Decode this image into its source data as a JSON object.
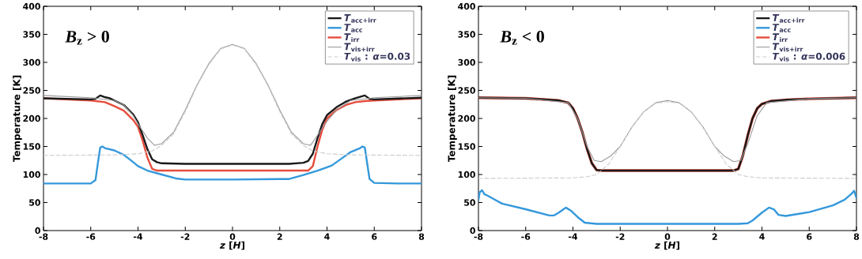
{
  "chart_data": [
    {
      "type": "line",
      "annotations": [
        "*B*$_{z}$ > 0"
      ],
      "xlabel": "*z* [*H*]",
      "ylabel": "Temperature [K]",
      "xlim": [
        -8,
        8
      ],
      "ylim": [
        0,
        400
      ],
      "xticks": [
        -8,
        -6,
        -4,
        -2,
        0,
        2,
        4,
        6,
        8
      ],
      "yticks": [
        0,
        50,
        100,
        150,
        200,
        250,
        300,
        350,
        400
      ],
      "grid": false,
      "legend": "top right",
      "series": [
        {
          "name": "*T*$_{acc+irr}$",
          "color": "#1a1a1a",
          "line_style": "solid",
          "x": [
            -8,
            -6,
            -5.8,
            -5.6,
            -5.4,
            -5.2,
            -5,
            -4.6,
            -4.2,
            -4,
            -3.8,
            -3.6,
            -3.4,
            -3.2,
            -3,
            -2,
            0,
            2.4,
            3,
            3.2,
            3.4,
            3.6,
            3.8,
            4,
            4.4,
            4.8,
            5.2,
            5.6,
            5.8,
            6,
            8
          ],
          "values": [
            236,
            234,
            235,
            241,
            238,
            236,
            232,
            224,
            207,
            193,
            170,
            145,
            127,
            122,
            120,
            119,
            119,
            119,
            121,
            124,
            137,
            165,
            190,
            206,
            220,
            230,
            236,
            241,
            235,
            234,
            237
          ]
        },
        {
          "name": "*T*$_{acc}$",
          "color": "#3498db",
          "line_style": "solid",
          "x": [
            -8,
            -7,
            -6,
            -5.8,
            -5.7,
            -5.6,
            -5.5,
            -5.4,
            -5,
            -4.6,
            -4.2,
            -4,
            -3.6,
            -3,
            -2.4,
            -2,
            0,
            2,
            2.4,
            3,
            3.6,
            4,
            4.2,
            4.6,
            5,
            5.4,
            5.5,
            5.6,
            5.7,
            5.8,
            6,
            7,
            8
          ],
          "values": [
            84,
            84,
            84,
            90,
            120,
            148,
            150,
            147,
            143,
            135,
            122,
            115,
            107,
            100,
            93,
            91,
            91,
            92,
            92,
            99,
            107,
            113,
            116,
            128,
            140,
            147,
            150,
            148,
            120,
            92,
            85,
            84,
            84
          ]
        },
        {
          "name": "*T*$_{irr}$",
          "color": "#e74c3c",
          "line_style": "solid",
          "x": [
            -8,
            -6,
            -5.4,
            -5,
            -4.6,
            -4.2,
            -4,
            -3.8,
            -3.6,
            -3.4,
            -3.2,
            0,
            3.2,
            3.4,
            3.6,
            3.8,
            4,
            4.4,
            4.8,
            5.2,
            5.6,
            6,
            8
          ],
          "values": [
            236,
            232,
            229,
            222,
            214,
            197,
            185,
            160,
            130,
            110,
            107,
            107,
            107,
            115,
            150,
            180,
            200,
            215,
            224,
            229,
            231,
            232,
            236
          ]
        },
        {
          "name": "*T*$_{vis+irr}$",
          "color": "#999999",
          "line_style": "solid",
          "x": [
            -8,
            -6,
            -5,
            -4.6,
            -4.2,
            -4,
            -3.6,
            -3.3,
            -3,
            -2.5,
            -2,
            -1.5,
            -1,
            -0.5,
            0,
            0.5,
            1,
            1.5,
            2,
            2.5,
            3,
            3.3,
            3.6,
            4,
            4.4,
            5,
            6,
            8
          ],
          "values": [
            241,
            237,
            232,
            224,
            205,
            190,
            165,
            152,
            155,
            175,
            215,
            260,
            298,
            325,
            332,
            325,
            298,
            260,
            215,
            175,
            155,
            152,
            170,
            195,
            215,
            232,
            237,
            241
          ]
        },
        {
          "name": "*T*$_{vis}$ : *α*=0.03",
          "color": "#cccccc",
          "line_style": "dashed",
          "x": [
            -8,
            -5,
            -4,
            -3.4,
            -3,
            -2.5,
            -2,
            -1.5,
            -1,
            -0.5,
            0,
            0.5,
            1,
            1.5,
            2,
            2.5,
            3,
            3.4,
            4,
            5,
            8
          ],
          "values": [
            134,
            135,
            137,
            142,
            152,
            172,
            212,
            258,
            296,
            324,
            331,
            324,
            296,
            258,
            212,
            172,
            152,
            142,
            137,
            135,
            134
          ]
        }
      ]
    },
    {
      "type": "line",
      "annotations": [
        "*B*$_{z}$ < 0"
      ],
      "xlabel": "*z* [*H*]",
      "ylabel": "Temperature [K]",
      "xlim": [
        -8,
        8
      ],
      "ylim": [
        0,
        400
      ],
      "xticks": [
        -8,
        -6,
        -4,
        -2,
        0,
        2,
        4,
        6,
        8
      ],
      "yticks": [
        0,
        50,
        100,
        150,
        200,
        250,
        300,
        350,
        400
      ],
      "grid": false,
      "legend": "top right",
      "series": [
        {
          "name": "*T*$_{acc+irr}$",
          "color": "#1a1a1a",
          "line_style": "solid",
          "x": [
            -8,
            -6,
            -4.6,
            -4.2,
            -4,
            -3.8,
            -3.6,
            -3.4,
            -3.2,
            -3,
            -2.8,
            0,
            2.8,
            3,
            3.2,
            3.4,
            3.6,
            3.8,
            4,
            4.4,
            5,
            6,
            8
          ],
          "values": [
            237,
            236,
            232,
            228,
            218,
            200,
            175,
            145,
            120,
            108,
            107,
            107,
            107,
            110,
            135,
            170,
            200,
            218,
            226,
            231,
            233,
            235,
            237
          ]
        },
        {
          "name": "*T*$_{acc}$",
          "color": "#3498db",
          "line_style": "solid",
          "x": [
            -8,
            -7.95,
            -7.85,
            -7.75,
            -7.6,
            -7,
            -6,
            -5,
            -4.8,
            -4.6,
            -4.4,
            -4.3,
            -4.1,
            -3.8,
            -3.5,
            -3,
            0,
            3,
            3.4,
            3.6,
            4,
            4.3,
            4.5,
            4.7,
            5,
            6,
            7,
            7.5,
            7.8,
            7.9,
            8
          ],
          "values": [
            55,
            68,
            72,
            65,
            62,
            48,
            38,
            27,
            27,
            32,
            38,
            41,
            36,
            24,
            14,
            12,
            12,
            12,
            13,
            18,
            32,
            41,
            38,
            28,
            26,
            33,
            45,
            55,
            66,
            71,
            58
          ]
        },
        {
          "name": "*T*$_{irr}$",
          "color": "#e74c3c",
          "line_style": "solid",
          "x": [
            -8,
            -6,
            -4.6,
            -4.2,
            -4,
            -3.8,
            -3.6,
            -3.4,
            -3.2,
            -3,
            -2.8,
            2.8,
            3,
            3.2,
            3.4,
            3.6,
            3.8,
            4,
            4.4,
            5,
            6,
            8
          ],
          "values": [
            237,
            236,
            232,
            228,
            218,
            200,
            175,
            145,
            120,
            108,
            107,
            107,
            110,
            135,
            170,
            200,
            218,
            226,
            231,
            233,
            235,
            237
          ]
        },
        {
          "name": "*T*$_{vis+irr}$",
          "color": "#999999",
          "line_style": "solid",
          "x": [
            -8,
            -6,
            -4.2,
            -3.8,
            -3.4,
            -3.1,
            -2.8,
            -2.4,
            -2,
            -1.5,
            -1,
            -0.5,
            0,
            0.5,
            1,
            1.5,
            2,
            2.4,
            2.8,
            3.1,
            3.4,
            3.8,
            4.2,
            6,
            8
          ],
          "values": [
            237,
            236,
            228,
            200,
            150,
            125,
            123,
            133,
            150,
            185,
            212,
            228,
            232,
            228,
            212,
            185,
            150,
            133,
            123,
            125,
            155,
            205,
            228,
            235,
            237
          ]
        },
        {
          "name": "*T*$_{vis}$ : *α*=0.006",
          "color": "#cccccc",
          "line_style": "dashed",
          "x": [
            -8,
            -4,
            -3.4,
            -3,
            -2.5,
            -2,
            -1.5,
            -1,
            -0.5,
            0,
            0.5,
            1,
            1.5,
            2,
            2.5,
            3,
            3.4,
            4,
            8
          ],
          "values": [
            93,
            94,
            96,
            100,
            118,
            150,
            185,
            212,
            227,
            230,
            227,
            212,
            185,
            150,
            118,
            100,
            96,
            94,
            93
          ]
        }
      ]
    }
  ]
}
